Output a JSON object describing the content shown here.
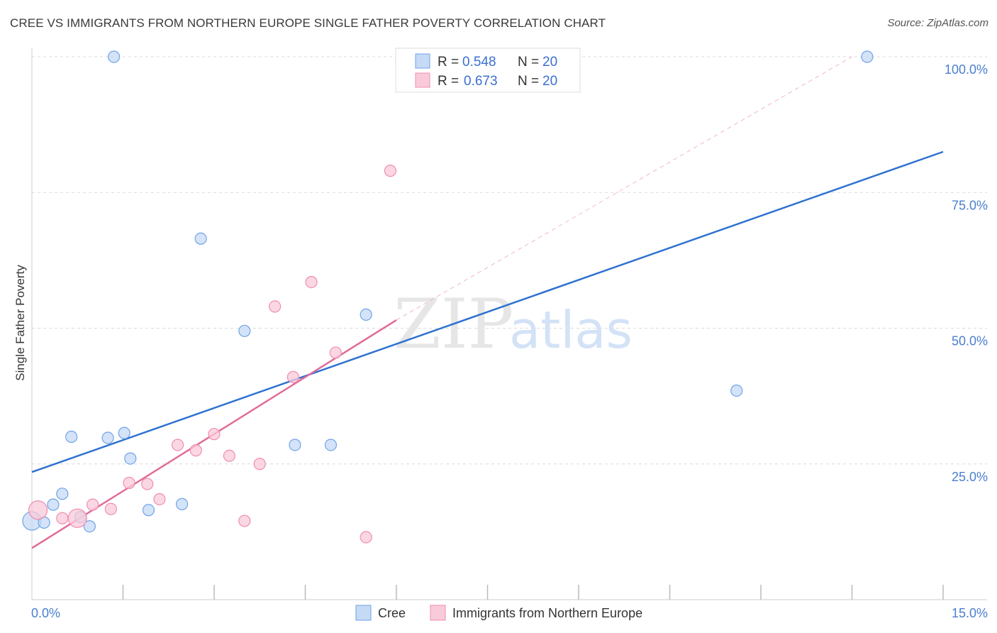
{
  "header": {
    "title": "CREE VS IMMIGRANTS FROM NORTHERN EUROPE SINGLE FATHER POVERTY CORRELATION CHART",
    "source": "Source: ZipAtlas.com"
  },
  "watermark": {
    "zip": "ZIP",
    "atlas": "atlas"
  },
  "chart_data": {
    "type": "scatter",
    "title": "CREE VS IMMIGRANTS FROM NORTHERN EUROPE SINGLE FATHER POVERTY CORRELATION CHART",
    "xlabel": "",
    "ylabel": "Single Father Poverty",
    "xlim": [
      0,
      15
    ],
    "ylim": [
      0,
      100
    ],
    "x_tick_labels": [
      "0.0%",
      "15.0%"
    ],
    "y_ticks": [
      25,
      50,
      75,
      100
    ],
    "y_tick_labels": [
      "25.0%",
      "50.0%",
      "75.0%",
      "100.0%"
    ],
    "grid": true,
    "legend_position": "top-center",
    "series": [
      {
        "name": "Cree",
        "color": "#6fa3e8",
        "fill": "#c5daf5",
        "R": "0.548",
        "N": "20",
        "trend": {
          "x": [
            0,
            15
          ],
          "y": [
            23.5,
            82.5
          ],
          "color": "#2f72d0"
        },
        "points": [
          {
            "x": 0.0,
            "y": 14.5,
            "big": true
          },
          {
            "x": 0.2,
            "y": 14.2
          },
          {
            "x": 0.35,
            "y": 17.5
          },
          {
            "x": 0.5,
            "y": 19.5
          },
          {
            "x": 0.65,
            "y": 30.0
          },
          {
            "x": 0.8,
            "y": 15.2
          },
          {
            "x": 0.95,
            "y": 13.5
          },
          {
            "x": 1.25,
            "y": 29.8
          },
          {
            "x": 1.35,
            "y": 100.0
          },
          {
            "x": 1.52,
            "y": 30.7
          },
          {
            "x": 1.62,
            "y": 26.0
          },
          {
            "x": 1.92,
            "y": 16.5
          },
          {
            "x": 2.47,
            "y": 17.6
          },
          {
            "x": 2.78,
            "y": 66.5
          },
          {
            "x": 3.5,
            "y": 49.5
          },
          {
            "x": 4.33,
            "y": 28.5
          },
          {
            "x": 4.92,
            "y": 28.5
          },
          {
            "x": 5.5,
            "y": 52.5
          },
          {
            "x": 11.6,
            "y": 38.5
          },
          {
            "x": 13.75,
            "y": 100.0
          }
        ]
      },
      {
        "name": "Immigrants from Northern Europe",
        "color": "#f08db0",
        "fill": "#f9cad9",
        "R": "0.673",
        "N": "20",
        "trend": {
          "x": [
            0,
            6.0
          ],
          "y": [
            9.5,
            51.5
          ],
          "color": "#e06b98"
        },
        "trend_dashed": {
          "x": [
            6.0,
            13.5
          ],
          "y": [
            51.5,
            100.0
          ]
        },
        "points": [
          {
            "x": 0.1,
            "y": 16.5,
            "big": true
          },
          {
            "x": 0.75,
            "y": 15.0,
            "big": true
          },
          {
            "x": 1.0,
            "y": 17.5
          },
          {
            "x": 1.3,
            "y": 16.7
          },
          {
            "x": 1.6,
            "y": 21.5
          },
          {
            "x": 1.9,
            "y": 21.3
          },
          {
            "x": 2.1,
            "y": 18.5
          },
          {
            "x": 2.4,
            "y": 28.5
          },
          {
            "x": 2.7,
            "y": 27.5
          },
          {
            "x": 3.0,
            "y": 30.5
          },
          {
            "x": 3.25,
            "y": 26.5
          },
          {
            "x": 3.5,
            "y": 14.5
          },
          {
            "x": 3.75,
            "y": 25.0
          },
          {
            "x": 4.0,
            "y": 54.0
          },
          {
            "x": 4.3,
            "y": 41.0
          },
          {
            "x": 4.6,
            "y": 58.5
          },
          {
            "x": 5.0,
            "y": 45.5
          },
          {
            "x": 5.5,
            "y": 11.5
          },
          {
            "x": 5.9,
            "y": 79.0
          },
          {
            "x": 0.5,
            "y": 15.0
          }
        ]
      }
    ]
  }
}
